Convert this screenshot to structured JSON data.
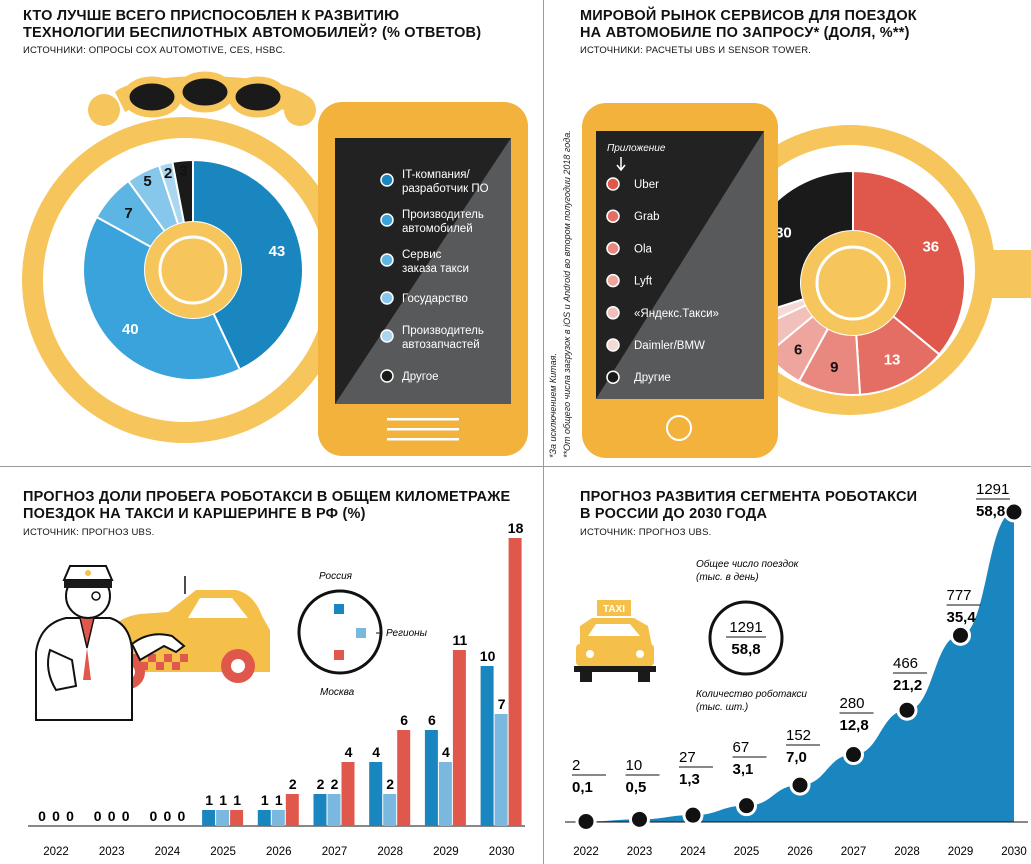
{
  "panels": {
    "tl": {
      "title_line1": "КТО ЛУЧШЕ ВСЕГО ПРИСПОСОБЛЕН К РАЗВИТИЮ",
      "title_line2": "ТЕХНОЛОГИИ БЕСПИЛОТНЫХ АВТОМОБИЛЕЙ? (% ОТВЕТОВ)",
      "source": "ИСТОЧНИКИ: ОПРОСЫ COX AUTOMOTIVE, CES, HSBC."
    },
    "tr": {
      "title_line1": "МИРОВОЙ РЫНОК СЕРВИСОВ ДЛЯ ПОЕЗДОК",
      "title_line2": "НА АВТОМОБИЛЕ ПО ЗАПРОСУ* (ДОЛЯ, %**)",
      "source": "ИСТОЧНИКИ: РАСЧЕТЫ UBS И SENSOR TOWER.",
      "legend_header": "Приложение",
      "footnote1": "*За исключением Китая.",
      "footnote2": "**От общего числа загрузок в iOS и Android во втором полугодии 2018 года."
    },
    "bl": {
      "title_line1": "ПРОГНОЗ ДОЛИ ПРОБЕГА РОБОТАКСИ В ОБЩЕМ КИЛОМЕТРАЖЕ",
      "title_line2": "ПОЕЗДОК НА ТАКСИ И КАРШЕРИНГЕ В РФ (%)",
      "source": "ИСТОЧНИК: ПРОГНОЗ UBS."
    },
    "br": {
      "title_line1": "ПРОГНОЗ РАЗВИТИЯ СЕГМЕНТА РОБОТАКСИ",
      "title_line2": "В РОССИИ ДО 2030 ГОДА",
      "source": "ИСТОЧНИК: ПРОГНОЗ UBS.",
      "key_top_label": "Общее число поездок",
      "key_top_unit": "(тыс. в день)",
      "key_bottom_label": "Количество роботакси",
      "key_bottom_unit": "(тыс. шт.)",
      "key_top_value": "1291",
      "key_bottom_value": "58,8",
      "taxi_sign": "TAXI"
    }
  },
  "chart_data": [
    {
      "type": "pie",
      "id": "who-best-suited",
      "title": "КТО ЛУЧШЕ ВСЕГО ПРИСПОСОБЛЕН К РАЗВИТИЮ ТЕХНОЛОГИИ БЕСПИЛОТНЫХ АВТОМОБИЛЕЙ? (% ОТВЕТОВ)",
      "slices": [
        {
          "label": "IT-компания/ разработчик ПО",
          "line1": "IT-компания/",
          "line2": "разработчик ПО",
          "value": 43,
          "color": "#1a86c0"
        },
        {
          "label": "Производитель автомобилей",
          "line1": "Производитель",
          "line2": "автомобилей",
          "value": 40,
          "color": "#3aa3dc"
        },
        {
          "label": "Сервис заказа такси",
          "line1": "Сервис",
          "line2": "заказа такси",
          "value": 7,
          "color": "#5cb5e3"
        },
        {
          "label": "Государство",
          "line1": "Государство",
          "line2": "",
          "value": 5,
          "color": "#86c7eb"
        },
        {
          "label": "Производитель автозапчастей",
          "line1": "Производитель",
          "line2": "автозапчастей",
          "value": 2,
          "color": "#a9d6f0"
        },
        {
          "label": "Другое",
          "line1": "Другое",
          "line2": "",
          "value": 3,
          "color": "#1a1a1a"
        }
      ]
    },
    {
      "type": "pie",
      "id": "ride-hailing-market",
      "title": "МИРОВОЙ РЫНОК СЕРВИСОВ ДЛЯ ПОЕЗДОК НА АВТОМОБИЛЕ ПО ЗАПРОСУ* (ДОЛЯ, %**)",
      "slices": [
        {
          "label": "Uber",
          "value": 36,
          "color": "#e0574b"
        },
        {
          "label": "Grab",
          "value": 13,
          "color": "#e46e63"
        },
        {
          "label": "Ola",
          "value": 9,
          "color": "#e8887e"
        },
        {
          "label": "Lyft",
          "value": 6,
          "color": "#eea59d"
        },
        {
          "label": "«Яндекс.Такси»",
          "value": 4,
          "color": "#f2c0ba"
        },
        {
          "label": "Daimler/BMW",
          "value": 2,
          "color": "#f6d9d5"
        },
        {
          "label": "Другие",
          "value": 30,
          "color": "#1a1a1a"
        }
      ]
    },
    {
      "type": "bar",
      "id": "robotaxi-mileage-share",
      "title": "ПРОГНОЗ ДОЛИ ПРОБЕГА РОБОТАКСИ В ОБЩЕМ КИЛОМЕТРАЖЕ ПОЕЗДОК НА ТАКСИ И КАРШЕРИНГЕ В РФ (%)",
      "categories": [
        "2022",
        "2023",
        "2024",
        "2025",
        "2026",
        "2027",
        "2028",
        "2029",
        "2030"
      ],
      "series": [
        {
          "name": "Россия",
          "color": "#1a86c0",
          "values": [
            0,
            0,
            0,
            1,
            1,
            2,
            4,
            6,
            10
          ]
        },
        {
          "name": "Регионы",
          "color": "#7ab8e0",
          "values": [
            0,
            0,
            0,
            1,
            1,
            2,
            2,
            4,
            7
          ]
        },
        {
          "name": "Москва",
          "color": "#e0574b",
          "values": [
            0,
            0,
            0,
            1,
            2,
            4,
            6,
            11,
            18
          ]
        }
      ],
      "ylim": [
        0,
        18
      ]
    },
    {
      "type": "area",
      "id": "robotaxi-segment-forecast",
      "title": "ПРОГНОЗ РАЗВИТИЯ СЕГМЕНТА РОБОТАКСИ В РОССИИ ДО 2030 ГОДА",
      "x": [
        "2022",
        "2023",
        "2024",
        "2025",
        "2026",
        "2027",
        "2028",
        "2029",
        "2030"
      ],
      "series": [
        {
          "name": "Общее число поездок (тыс. в день)",
          "values": [
            "2",
            "10",
            "27",
            "67",
            "152",
            "280",
            "466",
            "777",
            "1291"
          ]
        },
        {
          "name": "Количество роботакси (тыс. шт.)",
          "values": [
            "0,1",
            "0,5",
            "1,3",
            "3,1",
            "7,0",
            "12,8",
            "21,2",
            "35,4",
            "58,8"
          ]
        }
      ],
      "values_numeric": [
        0.1,
        0.5,
        1.3,
        3.1,
        7.0,
        12.8,
        21.2,
        35.4,
        58.8
      ],
      "color": "#1a86c0"
    }
  ],
  "colors": {
    "wheel_yellow": "#f6c55b",
    "phone_yellow": "#f3b23b",
    "phone_screen_dark": "#222222",
    "phone_screen_gray": "#58595b",
    "accent_blue": "#1a86c0",
    "accent_red": "#e0574b",
    "taxi_yellow": "#f5c04a"
  }
}
